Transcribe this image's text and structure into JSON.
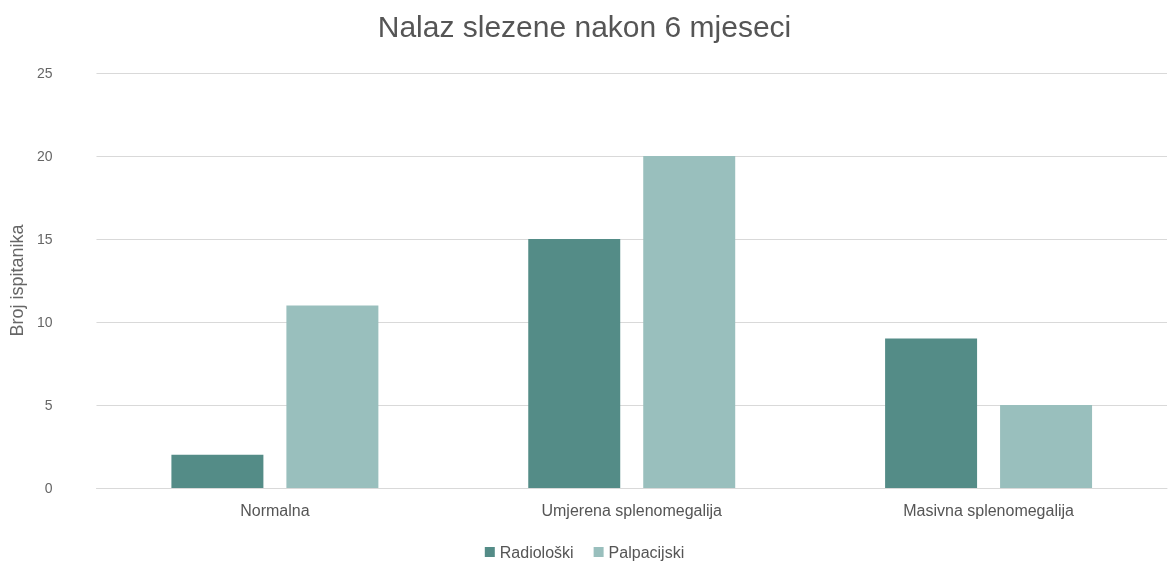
{
  "chart_data": {
    "type": "bar",
    "title": "Nalaz slezene nakon 6 mjeseci",
    "ylabel": "Broj ispitanika",
    "categories": [
      "Normalna",
      "Umjerena splenomegalija",
      "Masivna splenomegalija"
    ],
    "series": [
      {
        "name": "Radiološki",
        "color": "#548c87",
        "values": [
          2,
          15,
          9
        ]
      },
      {
        "name": "Palpacijski",
        "color": "#99bfbd",
        "values": [
          11,
          20,
          5
        ]
      }
    ],
    "ylim": [
      0,
      25
    ],
    "yticks": [
      0,
      5,
      10,
      15,
      20,
      25
    ],
    "grid": "y",
    "legend": "bottom"
  }
}
